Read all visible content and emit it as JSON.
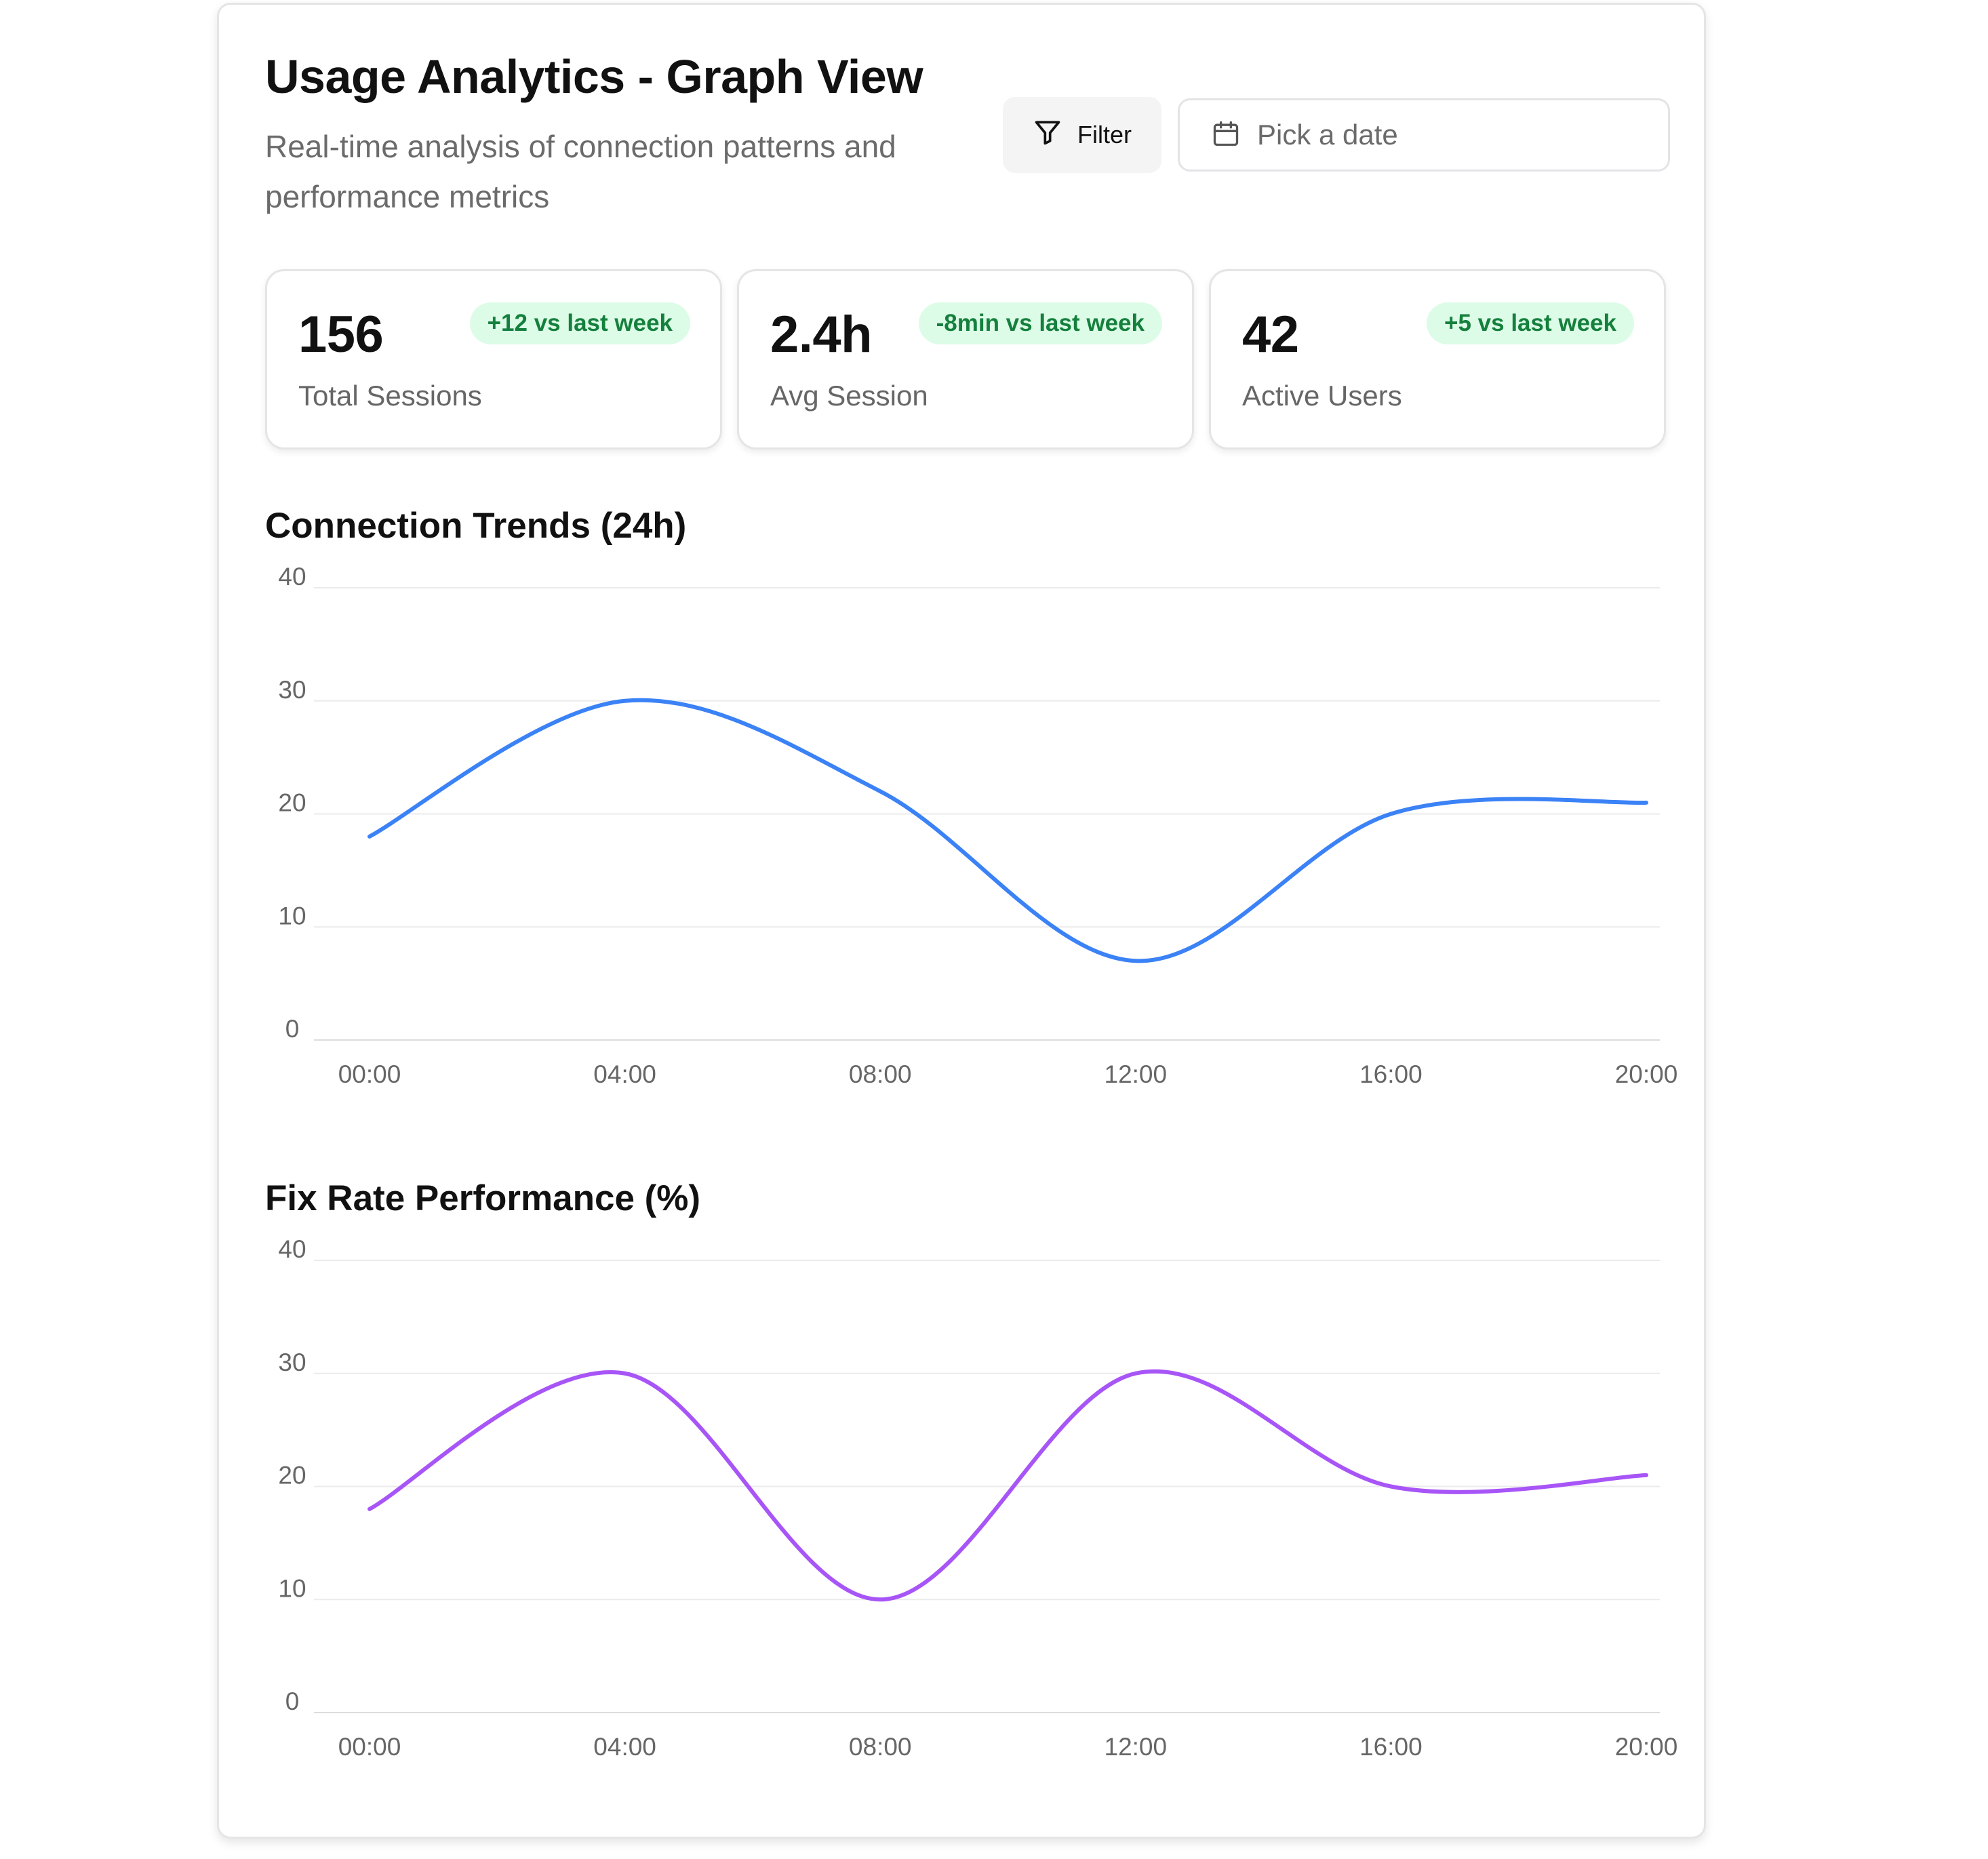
{
  "header": {
    "title": "Usage Analytics - Graph View",
    "subtitle": "Real-time analysis of connection patterns and performance metrics"
  },
  "toolbar": {
    "filter_label": "Filter",
    "filter_icon": "filter-icon",
    "date_placeholder": "Pick a date",
    "date_icon": "calendar-icon"
  },
  "stats": [
    {
      "value": "156",
      "label": "Total Sessions",
      "delta": "+12 vs last week"
    },
    {
      "value": "2.4h",
      "label": "Avg Session",
      "delta": "-8min vs last week"
    },
    {
      "value": "42",
      "label": "Active Users",
      "delta": "+5 vs last week"
    }
  ],
  "colors": {
    "connection_line": "#3b82f6",
    "fix_rate_line": "#a855f7",
    "badge_bg": "#dcfce7",
    "badge_text": "#15803d"
  },
  "chart_data": [
    {
      "type": "line",
      "title": "Connection Trends (24h)",
      "x": [
        "00:00",
        "04:00",
        "08:00",
        "12:00",
        "16:00",
        "20:00"
      ],
      "series": [
        {
          "values": [
            18,
            30,
            22,
            7,
            20,
            21
          ],
          "color": "#3b82f6"
        }
      ],
      "xlabel": "",
      "ylabel": "",
      "ylim": [
        0,
        40
      ],
      "yticks": [
        0,
        10,
        20,
        30,
        40
      ],
      "grid": true,
      "curve": "smooth"
    },
    {
      "type": "line",
      "title": "Fix Rate Performance (%)",
      "x": [
        "00:00",
        "04:00",
        "08:00",
        "12:00",
        "16:00",
        "20:00"
      ],
      "series": [
        {
          "values": [
            18,
            30,
            10,
            30,
            20,
            21
          ],
          "color": "#a855f7"
        }
      ],
      "xlabel": "",
      "ylabel": "",
      "ylim": [
        0,
        40
      ],
      "yticks": [
        0,
        10,
        20,
        30,
        40
      ],
      "grid": true,
      "curve": "smooth"
    }
  ]
}
